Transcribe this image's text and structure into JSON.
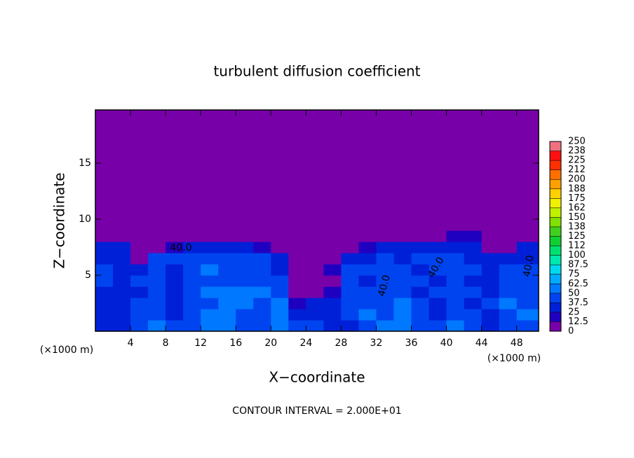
{
  "chart_data": {
    "type": "heatmap",
    "title": "turbulent diffusion coefficient",
    "x_label": "X−coordinate",
    "y_label": "Z−coordinate",
    "x_unit_left": "(×1000 m)",
    "x_unit_right": "(×1000 m)",
    "footer": "CONTOUR INTERVAL = 2.000E+01",
    "contour_labels": [
      "40.0",
      "40.0",
      "40.0",
      "40.0"
    ],
    "xlim": [
      0,
      50.5
    ],
    "ylim": [
      0,
      19.75
    ],
    "xticks": [
      4,
      8,
      12,
      16,
      20,
      24,
      28,
      32,
      36,
      40,
      44,
      48
    ],
    "yticks": [
      5,
      10,
      15
    ],
    "x_edges": [
      0,
      2,
      4,
      6,
      8,
      10,
      12,
      14,
      16,
      18,
      20,
      22,
      24,
      26,
      28,
      30,
      32,
      34,
      36,
      38,
      40,
      42,
      44,
      46,
      48,
      50.5
    ],
    "y_edges": [
      0,
      1,
      2,
      3,
      4,
      5,
      6,
      7,
      8,
      9,
      19.75
    ],
    "z": [
      [
        30,
        35,
        40,
        50,
        45,
        40,
        55,
        60,
        45,
        40,
        50,
        45,
        40,
        35,
        30,
        40,
        50,
        60,
        40,
        45,
        50,
        40,
        35,
        40,
        45
      ],
      [
        35,
        30,
        40,
        45,
        35,
        40,
        55,
        50,
        45,
        40,
        50,
        30,
        30,
        35,
        40,
        55,
        45,
        60,
        40,
        35,
        40,
        40,
        35,
        45,
        50
      ],
      [
        35,
        35,
        40,
        40,
        30,
        40,
        45,
        50,
        55,
        45,
        50,
        20,
        35,
        25,
        45,
        40,
        45,
        55,
        40,
        35,
        40,
        35,
        40,
        50,
        45
      ],
      [
        35,
        30,
        35,
        45,
        35,
        40,
        55,
        60,
        60,
        55,
        40,
        10,
        10,
        20,
        40,
        45,
        40,
        40,
        35,
        40,
        40,
        40,
        35,
        45,
        40
      ],
      [
        40,
        35,
        40,
        40,
        30,
        45,
        45,
        40,
        45,
        45,
        40,
        5,
        5,
        10,
        40,
        35,
        40,
        45,
        40,
        35,
        40,
        35,
        30,
        40,
        45
      ],
      [
        40,
        30,
        35,
        40,
        35,
        40,
        50,
        45,
        40,
        45,
        35,
        5,
        5,
        15,
        40,
        40,
        45,
        40,
        35,
        40,
        45,
        40,
        35,
        40,
        40
      ],
      [
        35,
        30,
        5,
        40,
        40,
        45,
        40,
        40,
        45,
        40,
        30,
        5,
        5,
        10,
        35,
        30,
        40,
        35,
        40,
        40,
        40,
        35,
        25,
        30,
        35
      ],
      [
        30,
        25,
        0,
        5,
        20,
        30,
        30,
        25,
        25,
        20,
        10,
        0,
        0,
        5,
        5,
        20,
        30,
        30,
        25,
        30,
        35,
        30,
        5,
        10,
        30
      ],
      [
        0,
        0,
        0,
        0,
        0,
        0,
        0,
        0,
        0,
        0,
        0,
        0,
        0,
        0,
        0,
        0,
        0,
        0,
        0,
        5,
        20,
        15,
        0,
        0,
        0
      ],
      [
        0,
        0,
        0,
        0,
        0,
        0,
        0,
        0,
        0,
        0,
        0,
        0,
        0,
        0,
        0,
        0,
        0,
        0,
        0,
        0,
        0,
        0,
        0,
        0,
        0
      ]
    ],
    "colorbar_ticks": [
      0,
      12.5,
      25,
      37.5,
      50,
      62.5,
      75,
      87.5,
      100,
      {
        "value": 112.5,
        "label": "112"
      },
      125,
      {
        "value": 137.5,
        "label": "138"
      },
      150,
      {
        "value": 162.5,
        "label": "162"
      },
      175,
      {
        "value": 187.5,
        "label": "188"
      },
      200,
      {
        "value": 212.5,
        "label": "212"
      },
      225,
      {
        "value": 237.5,
        "label": "238"
      },
      250
    ],
    "colors": [
      "#7800a8",
      "#2000c0",
      "#0020d8",
      "#0044f0",
      "#0078ff",
      "#00aaff",
      "#00d8f0",
      "#00e8b0",
      "#00e070",
      "#10d030",
      "#40d020",
      "#80e000",
      "#c0f000",
      "#f0f000",
      "#ffd000",
      "#ffa000",
      "#ff7000",
      "#ff3000",
      "#ff1010",
      "#f07080"
    ]
  }
}
